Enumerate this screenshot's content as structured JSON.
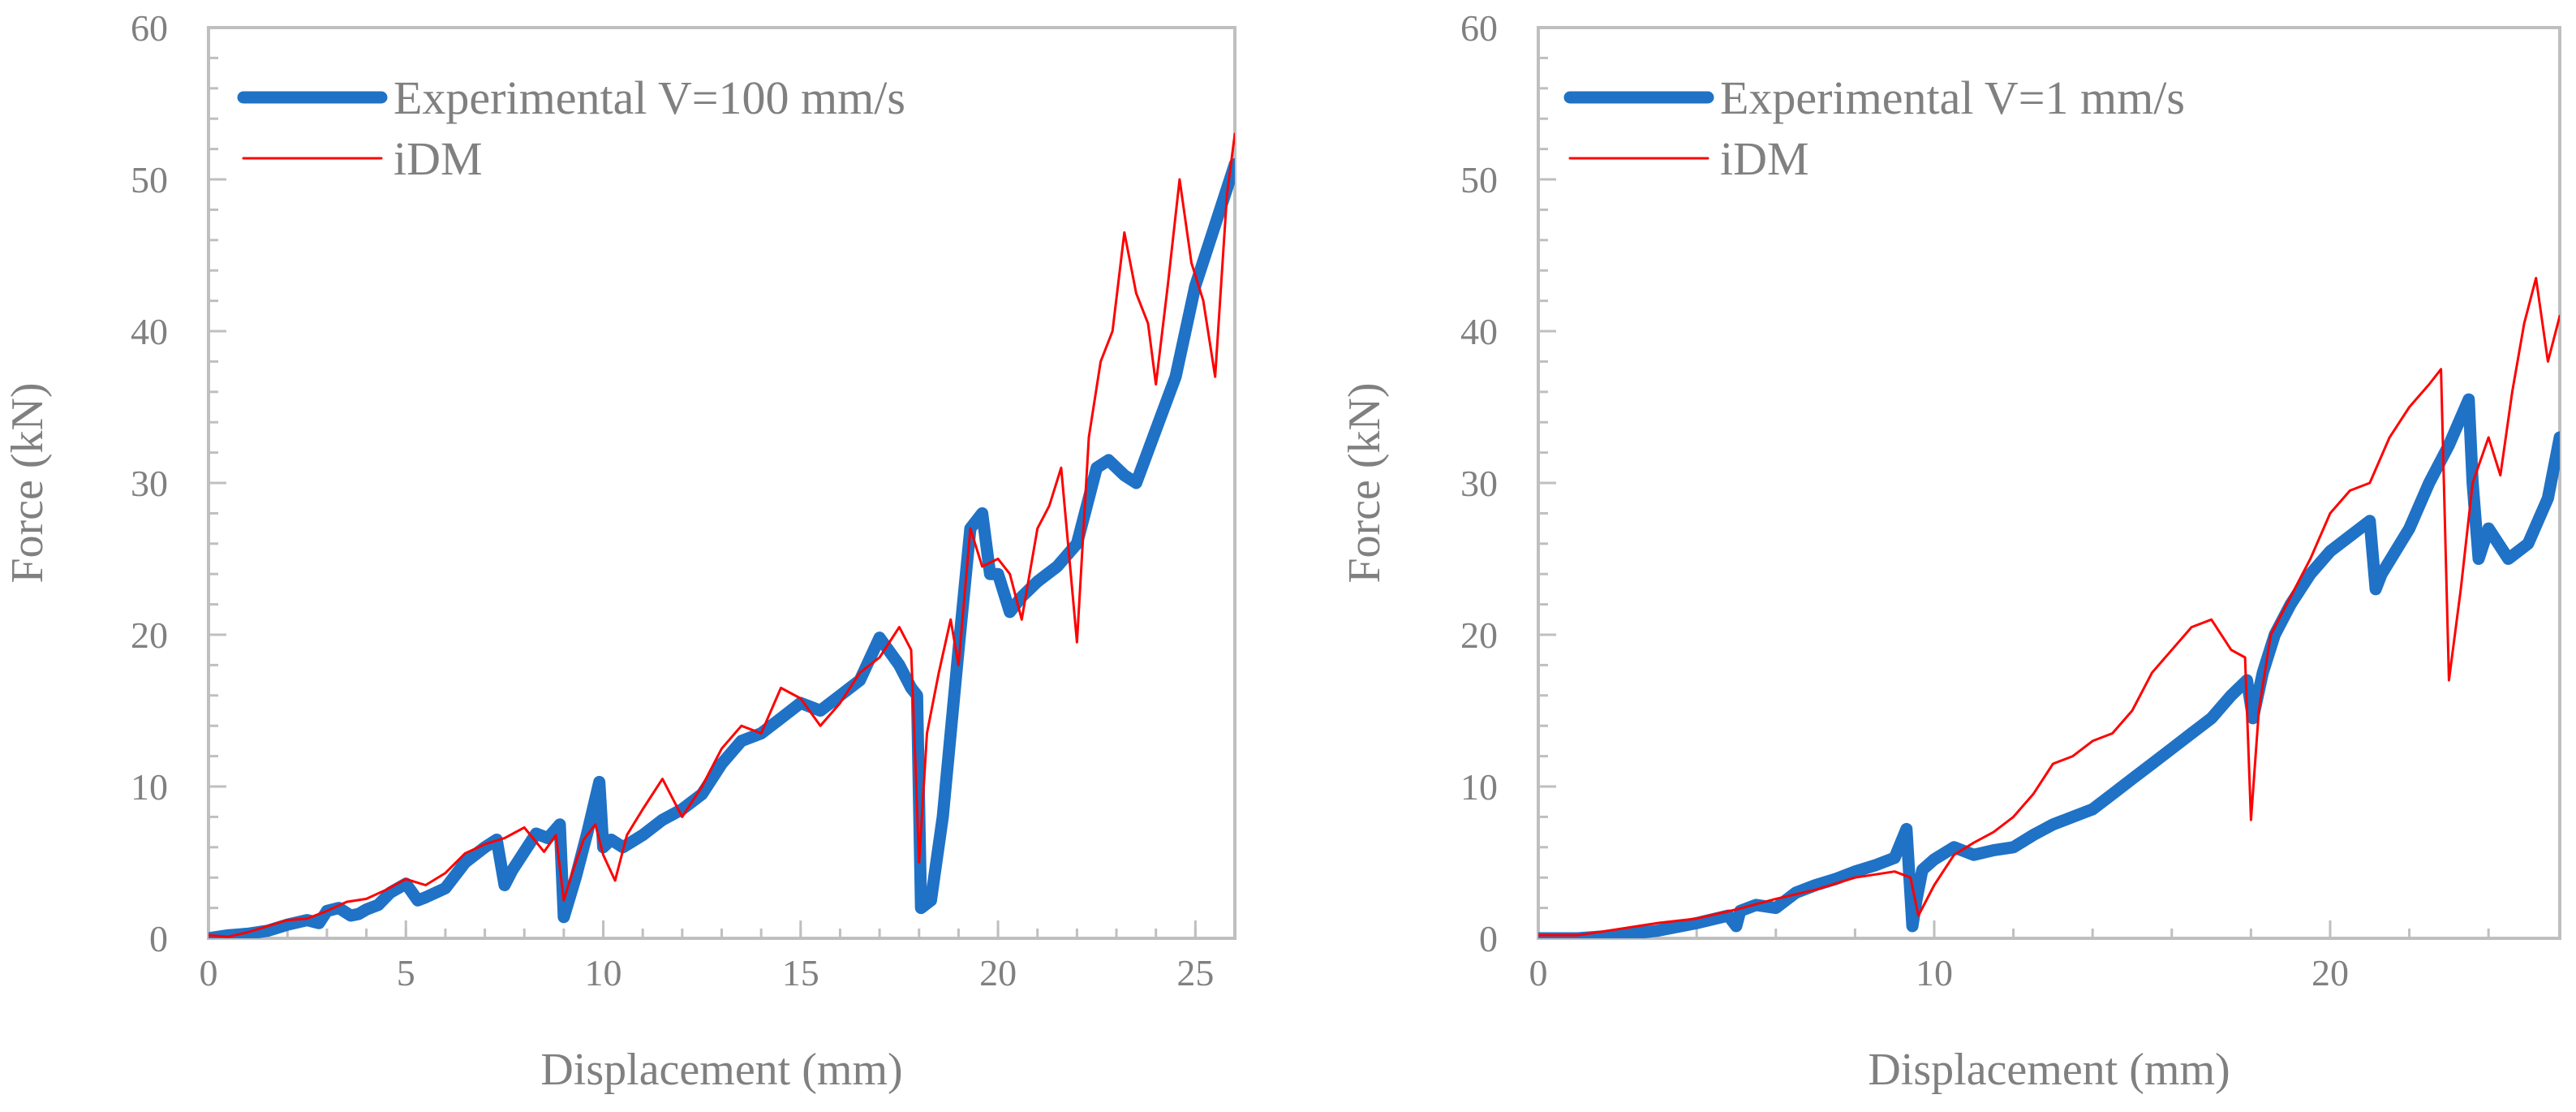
{
  "chart_data": [
    {
      "type": "line",
      "xlabel": "Displacement (mm)",
      "ylabel": "Force (kN)",
      "xlim": [
        0,
        26
      ],
      "ylim": [
        0,
        60
      ],
      "xticks": [
        0,
        5,
        10,
        15,
        20,
        25
      ],
      "yticks": [
        0,
        10,
        20,
        30,
        40,
        50,
        60
      ],
      "grid": false,
      "legend_position": "top-left",
      "series": [
        {
          "name": "Experimental V=100 mm/s",
          "color": "#1f72c6",
          "x": [
            0,
            0.5,
            1,
            1.5,
            2,
            2.5,
            2.8,
            3,
            3.3,
            3.6,
            3.8,
            4,
            4.3,
            4.6,
            5,
            5.3,
            5.5,
            6,
            6.5,
            7,
            7.3,
            7.5,
            7.7,
            8,
            8.3,
            8.6,
            8.9,
            9.0,
            9.3,
            9.6,
            9.9,
            10.0,
            10.2,
            10.5,
            11,
            11.5,
            12,
            12.5,
            13,
            13.5,
            14,
            14.5,
            15,
            15.5,
            16,
            16.5,
            17,
            17.5,
            17.8,
            17.95,
            18.05,
            18.3,
            18.6,
            19,
            19.3,
            19.6,
            19.8,
            20,
            20.3,
            20.6,
            21,
            21.5,
            22,
            22.5,
            22.8,
            23.2,
            23.5,
            24,
            24.5,
            25,
            25.5,
            26
          ],
          "values": [
            0,
            0.2,
            0.3,
            0.5,
            0.9,
            1.2,
            1.0,
            1.8,
            2.0,
            1.5,
            1.6,
            1.9,
            2.2,
            3.0,
            3.6,
            2.5,
            2.7,
            3.3,
            5.0,
            6.0,
            6.5,
            3.5,
            4.5,
            5.7,
            6.9,
            6.6,
            7.5,
            1.4,
            4.0,
            7.0,
            10.3,
            6.0,
            6.5,
            6.0,
            6.8,
            7.8,
            8.5,
            9.5,
            11.5,
            13.0,
            13.5,
            14.5,
            15.5,
            15.0,
            16.0,
            17.0,
            19.8,
            18.0,
            16.5,
            16.0,
            2.0,
            2.5,
            8.0,
            19.0,
            27.0,
            28.0,
            24.0,
            24.0,
            21.5,
            22.5,
            23.5,
            24.5,
            26.0,
            31.0,
            31.5,
            30.5,
            30.0,
            33.5,
            37.0,
            43.0,
            47.0,
            51.0
          ]
        },
        {
          "name": "iDM",
          "color": "#ff0000",
          "x": [
            0,
            0.5,
            1,
            1.5,
            2,
            2.5,
            3,
            3.5,
            4,
            4.5,
            5,
            5.5,
            6,
            6.5,
            7,
            7.5,
            8,
            8.5,
            8.8,
            9.0,
            9.2,
            9.5,
            9.8,
            10.0,
            10.3,
            10.6,
            11,
            11.5,
            12,
            12.5,
            13,
            13.5,
            14,
            14.5,
            15,
            15.5,
            16,
            16.5,
            17,
            17.5,
            17.8,
            18.0,
            18.2,
            18.5,
            18.8,
            19.0,
            19.3,
            19.6,
            20,
            20.3,
            20.6,
            21,
            21.3,
            21.6,
            22,
            22.3,
            22.6,
            22.9,
            23.2,
            23.5,
            23.8,
            24,
            24.3,
            24.6,
            24.9,
            25.2,
            25.5,
            25.8,
            26
          ],
          "values": [
            0.2,
            0.1,
            0.4,
            0.8,
            1.2,
            1.3,
            1.8,
            2.4,
            2.6,
            3.2,
            3.9,
            3.5,
            4.3,
            5.6,
            6.2,
            6.6,
            7.3,
            5.7,
            6.8,
            2.5,
            4.2,
            6.5,
            7.5,
            5.5,
            3.8,
            6.8,
            8.5,
            10.5,
            8.0,
            10.0,
            12.5,
            14.0,
            13.5,
            16.5,
            15.8,
            14.0,
            15.5,
            17.5,
            18.5,
            20.5,
            19.0,
            5.0,
            13.5,
            17.5,
            21.0,
            18.0,
            27.0,
            24.5,
            25.0,
            24.0,
            21.0,
            27.0,
            28.5,
            31.0,
            19.5,
            33.0,
            38.0,
            40.0,
            46.5,
            42.5,
            40.5,
            36.5,
            43.0,
            50.0,
            44.5,
            42.0,
            37.0,
            49.0,
            53.0
          ]
        }
      ]
    },
    {
      "type": "line",
      "xlabel": "Displacement (mm)",
      "ylabel": "Force (kN)",
      "xlim": [
        0,
        25.8
      ],
      "ylim": [
        0,
        60
      ],
      "xticks": [
        0,
        10,
        20
      ],
      "yticks": [
        0,
        10,
        20,
        30,
        40,
        50,
        60
      ],
      "grid": false,
      "legend_position": "top-left",
      "series": [
        {
          "name": "Experimental V=1 mm/s",
          "color": "#1f72c6",
          "x": [
            0,
            1,
            2,
            3,
            4,
            4.8,
            5.0,
            5.1,
            5.5,
            6,
            6.5,
            7,
            7.5,
            8,
            8.5,
            9,
            9.3,
            9.45,
            9.55,
            9.7,
            10,
            10.5,
            11,
            11.5,
            12,
            12.5,
            13,
            13.5,
            14,
            14.5,
            15,
            15.5,
            16,
            16.5,
            17,
            17.5,
            17.9,
            18.05,
            18.3,
            18.6,
            19,
            19.5,
            20,
            20.5,
            21,
            21.15,
            21.3,
            22,
            22.5,
            23,
            23.5,
            23.6,
            23.75,
            24.0,
            24.5,
            25,
            25.5,
            25.8
          ],
          "values": [
            0,
            0,
            0.2,
            0.5,
            1.0,
            1.5,
            0.8,
            1.8,
            2.2,
            2.0,
            3.0,
            3.5,
            3.9,
            4.4,
            4.8,
            5.3,
            7.2,
            0.8,
            2.5,
            4.5,
            5.2,
            6.0,
            5.5,
            5.8,
            6.0,
            6.8,
            7.5,
            8.0,
            8.5,
            9.5,
            10.5,
            11.5,
            12.5,
            13.5,
            14.5,
            16.0,
            17.0,
            14.5,
            17.5,
            20.0,
            22.0,
            24.0,
            25.5,
            26.5,
            27.5,
            23.0,
            24.0,
            27.0,
            30.0,
            32.5,
            35.5,
            30.0,
            25.0,
            27.0,
            25.0,
            26.0,
            29.0,
            33.0
          ]
        },
        {
          "name": "iDM",
          "color": "#ff0000",
          "x": [
            0,
            1,
            2,
            3,
            4,
            5,
            6,
            7,
            8,
            9,
            9.4,
            9.6,
            10,
            10.5,
            11,
            11.5,
            12,
            12.5,
            13,
            13.5,
            14,
            14.5,
            15,
            15.5,
            16,
            16.5,
            17,
            17.5,
            17.85,
            18.0,
            18.2,
            18.5,
            19,
            19.5,
            20,
            20.5,
            21,
            21.5,
            22,
            22.5,
            22.8,
            23.0,
            23.3,
            23.6,
            24,
            24.3,
            24.6,
            24.9,
            25.2,
            25.5,
            25.8
          ],
          "values": [
            0.2,
            0.2,
            0.6,
            1.0,
            1.3,
            1.9,
            2.6,
            3.2,
            4.0,
            4.4,
            4.0,
            1.5,
            3.5,
            5.5,
            6.3,
            7.0,
            8.0,
            9.5,
            11.5,
            12.0,
            13.0,
            13.5,
            15.0,
            17.5,
            19.0,
            20.5,
            21.0,
            19.0,
            18.5,
            7.8,
            15.0,
            20.0,
            22.5,
            25.0,
            28.0,
            29.5,
            30.0,
            33.0,
            35.0,
            36.5,
            37.5,
            17.0,
            23.0,
            30.0,
            33.0,
            30.5,
            36.0,
            40.5,
            43.5,
            38.0,
            41.0
          ]
        }
      ]
    }
  ]
}
